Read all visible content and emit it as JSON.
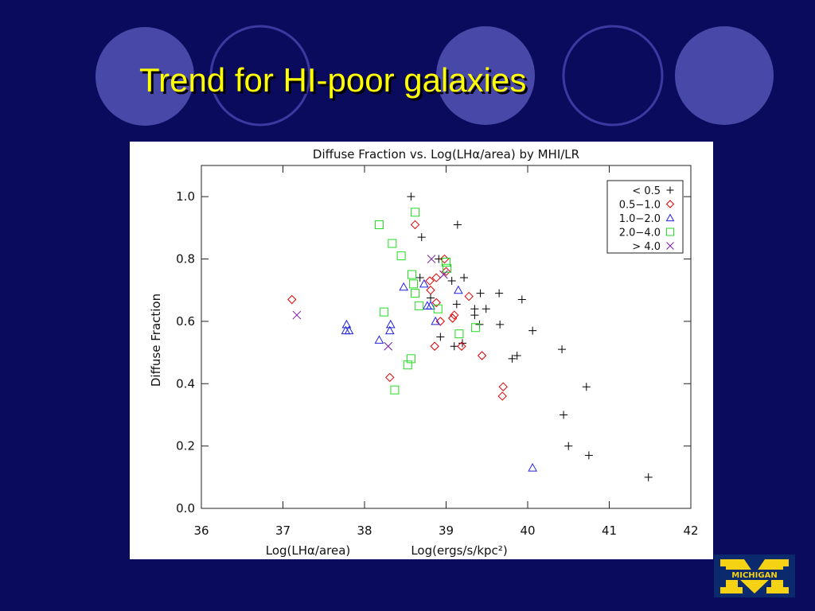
{
  "title": "Trend for HI-poor galaxies",
  "logo_text": "MICHIGAN",
  "chart_data": {
    "type": "scatter",
    "title": "Diffuse Fraction vs. Log(LHα/area) by MHI/LR",
    "x_label": "Log(LHα/area)",
    "x_unit": "Log(ergs/s/kpc²)",
    "y_label": "Diffuse Fraction",
    "xlim": [
      36,
      42
    ],
    "xticks": [
      36,
      37,
      38,
      39,
      40,
      41,
      42
    ],
    "ylim": [
      0,
      1.1
    ],
    "yticks": [
      {
        "value": 0,
        "label": "0.0"
      },
      0.2,
      0.4,
      0.6,
      0.8,
      {
        "value": 1,
        "label": "1.0"
      }
    ],
    "legend": "upper right",
    "series": [
      {
        "name": "< 0.5",
        "color": "#000000",
        "marker": "plus",
        "x": [
          38.57,
          38.7,
          39.14,
          38.91,
          38.68,
          38.81,
          39.07,
          39.22,
          39.13,
          39.42,
          39.65,
          39.35,
          39.35,
          39.49,
          39.93,
          39.66,
          39.41,
          40.06,
          38.93,
          39.1,
          39.2,
          39.87,
          39.81,
          40.42,
          40.72,
          40.44,
          40.5,
          40.75,
          41.48
        ],
        "y": [
          1.0,
          0.87,
          0.91,
          0.8,
          0.74,
          0.675,
          0.73,
          0.74,
          0.655,
          0.69,
          0.69,
          0.64,
          0.62,
          0.64,
          0.67,
          0.59,
          0.59,
          0.57,
          0.55,
          0.52,
          0.53,
          0.49,
          0.48,
          0.51,
          0.39,
          0.3,
          0.2,
          0.17,
          0.1
        ]
      },
      {
        "name": "0.5−1.0",
        "color": "#e00000",
        "marker": "diamond",
        "x": [
          38.62,
          37.11,
          38.98,
          39.0,
          38.8,
          38.88,
          38.81,
          39.28,
          38.88,
          39.1,
          39.08,
          38.93,
          38.86,
          39.19,
          39.44,
          39.7,
          39.69,
          38.31
        ],
        "y": [
          0.91,
          0.67,
          0.8,
          0.76,
          0.73,
          0.74,
          0.7,
          0.68,
          0.66,
          0.62,
          0.61,
          0.6,
          0.52,
          0.52,
          0.49,
          0.39,
          0.36,
          0.42
        ]
      },
      {
        "name": "1.0−2.0",
        "color": "#2020e0",
        "marker": "triangle",
        "x": [
          37.78,
          37.77,
          37.81,
          38.18,
          38.32,
          38.31,
          38.48,
          38.73,
          38.77,
          38.81,
          39.15,
          38.87,
          40.06
        ],
        "y": [
          0.59,
          0.57,
          0.57,
          0.54,
          0.59,
          0.57,
          0.71,
          0.72,
          0.65,
          0.65,
          0.7,
          0.6,
          0.13
        ]
      },
      {
        "name": "2.0−4.0",
        "color": "#22dd22",
        "marker": "square",
        "x": [
          38.18,
          38.62,
          38.34,
          38.45,
          38.58,
          38.6,
          38.62,
          39.0,
          39.01,
          38.67,
          38.9,
          38.24,
          39.36,
          39.16,
          38.57,
          38.53,
          38.37
        ],
        "y": [
          0.91,
          0.95,
          0.85,
          0.81,
          0.75,
          0.72,
          0.69,
          0.79,
          0.77,
          0.65,
          0.64,
          0.63,
          0.58,
          0.56,
          0.48,
          0.46,
          0.38
        ]
      },
      {
        "name": "> 4.0",
        "color": "#7a1aa8",
        "marker": "x",
        "x": [
          37.17,
          38.82,
          38.97,
          38.29
        ],
        "y": [
          0.62,
          0.8,
          0.75,
          0.52
        ]
      }
    ]
  }
}
